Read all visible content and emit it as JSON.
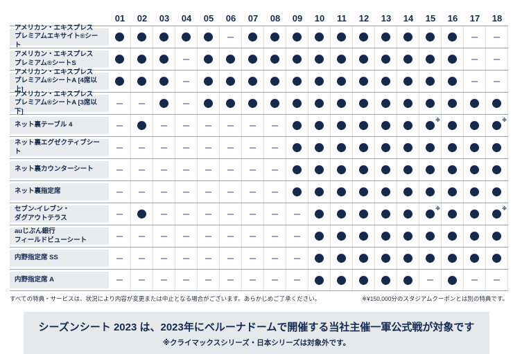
{
  "chart_data": {
    "type": "table",
    "note_symbol": "※",
    "columns": [
      "01",
      "02",
      "03",
      "04",
      "05",
      "06",
      "07",
      "08",
      "09",
      "10",
      "11",
      "12",
      "13",
      "14",
      "15",
      "16",
      "17",
      "18"
    ],
    "rows": [
      {
        "label": "アメリカン・エキスプレス\nプレミアムエキサイト®シート",
        "cells": [
          "dot",
          "dot",
          "dot",
          "dot",
          "dot",
          "dash",
          "dot",
          "dot",
          "dot",
          "dot",
          "dot",
          "dot",
          "dot",
          "dot",
          "dot",
          "dot",
          "dash",
          "dash"
        ]
      },
      {
        "label": "アメリカン・エキスプレス\nプレミアム®シートS",
        "cells": [
          "dot",
          "dot",
          "dot",
          "dash",
          "dot",
          "dot",
          "dot",
          "dot",
          "dot",
          "dot",
          "dot",
          "dot",
          "dot",
          "dot",
          "dot",
          "dot",
          "dash",
          "dash"
        ]
      },
      {
        "label": "アメリカン・エキスプレス\nプレミアム®シートA [4席以上]",
        "cells": [
          "dot",
          "dot",
          "dot",
          "dash",
          "dot",
          "dot",
          "dot",
          "dot",
          "dot",
          "dot",
          "dot",
          "dot",
          "dot",
          "dot",
          "dot",
          "dot",
          "dash",
          "dash"
        ]
      },
      {
        "label": "アメリカン・エキスプレス\nプレミアム®シートA [3席以下]",
        "cells": [
          "dash",
          "dash",
          "dot",
          "dash",
          "dot",
          "dot",
          "dot",
          "dot",
          "dot",
          "dot",
          "dot",
          "dot",
          "dot",
          "dot",
          "dot",
          "dot",
          "dot",
          "dot"
        ]
      },
      {
        "label": "ネット裏テーブル 4",
        "cells": [
          "dash",
          "dot",
          "dash",
          "dash",
          "dash",
          "dash",
          "dash",
          "dash",
          "dot",
          "dot",
          "dot",
          "dot",
          "dot",
          "dot",
          "dotnote",
          "dot",
          "dot",
          "dotnote"
        ]
      },
      {
        "label": "ネット裏エグゼクティブシート",
        "cells": [
          "dash",
          "dash",
          "dash",
          "dash",
          "dash",
          "dash",
          "dash",
          "dash",
          "dot",
          "dot",
          "dot",
          "dot",
          "dot",
          "dot",
          "dot",
          "dot",
          "dot",
          "dot"
        ]
      },
      {
        "label": "ネット裏カウンターシート",
        "cells": [
          "dash",
          "dash",
          "dash",
          "dash",
          "dash",
          "dash",
          "dash",
          "dash",
          "dot",
          "dot",
          "dot",
          "dot",
          "dot",
          "dot",
          "dot",
          "dot",
          "dot",
          "dot"
        ]
      },
      {
        "label": "ネット裏指定席",
        "cells": [
          "dash",
          "dash",
          "dash",
          "dash",
          "dash",
          "dash",
          "dash",
          "dash",
          "dot",
          "dot",
          "dot",
          "dot",
          "dot",
          "dot",
          "dot",
          "dot",
          "dot",
          "dot"
        ]
      },
      {
        "label": "セブン-イレブン・\nダグアウトテラス",
        "cells": [
          "dash",
          "dot",
          "dash",
          "dash",
          "dash",
          "dash",
          "dash",
          "dash",
          "dash",
          "dot",
          "dot",
          "dot",
          "dot",
          "dot",
          "dotnote",
          "dot",
          "dot",
          "dotnote"
        ]
      },
      {
        "label": "auじぶん銀行\nフィールドビューシート",
        "cells": [
          "dash",
          "dash",
          "dash",
          "dash",
          "dash",
          "dash",
          "dash",
          "dash",
          "dash",
          "dot",
          "dot",
          "dot",
          "dot",
          "dot",
          "dot",
          "dot",
          "dot",
          "dot"
        ]
      },
      {
        "label": "内野指定席 SS",
        "cells": [
          "dash",
          "dash",
          "dash",
          "dash",
          "dash",
          "dash",
          "dash",
          "dash",
          "dash",
          "dot",
          "dot",
          "dot",
          "dot",
          "dot",
          "dot",
          "dot",
          "dot",
          "dot"
        ]
      },
      {
        "label": "内野指定席 A",
        "cells": [
          "dash",
          "dash",
          "dash",
          "dash",
          "dash",
          "dash",
          "dash",
          "dash",
          "dash",
          "dot",
          "dot",
          "dot",
          "dot",
          "dot",
          "dash",
          "dot",
          "dash",
          "dash"
        ]
      }
    ]
  },
  "footnotes": {
    "left": "すべての特典・サービスは、状況により内容が変更または中止となる場合がございます。あらかじめご了承ください。",
    "right": "※¥150,000分のスタジアムクーポンとは別の特典です。"
  },
  "banner": {
    "main": "シーズンシート 2023 は、2023年にベルーナドームで開催する当社主催一軍公式戦が対象です",
    "sub": "※クライマックスシリーズ・日本シリーズは対象外です。"
  },
  "colors": {
    "navy": "#152a4e",
    "label_bg": "#e9ebee",
    "banner_bg": "#e6e9ec",
    "dash": "#92a5bd",
    "row_line": "#99a1aa",
    "column_line": "#dde1e5"
  }
}
